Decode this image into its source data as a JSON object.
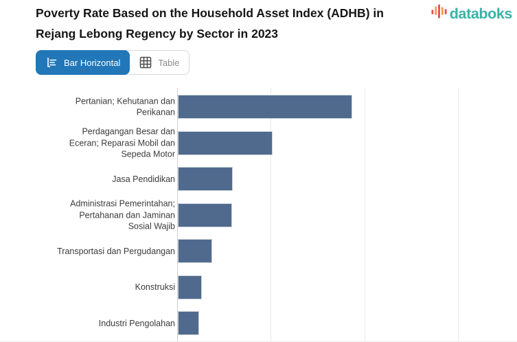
{
  "header": {
    "title": "Poverty Rate Based on the Household Asset Index (ADHB) in Rejang Lebong Regency by Sector in 2023",
    "brand": "databoks"
  },
  "view_toggle": {
    "bar_label": "Bar Horizontal",
    "table_label": "Table",
    "active": "Bar Horizontal"
  },
  "colors": {
    "bar": "#506a8d",
    "active_button_blue": "#2177b8",
    "brand_teal": "#38b2a7",
    "logo_red": "#e2554a",
    "logo_orange": "#f59a4d",
    "axis_line": "#cfcfcf",
    "gridline": "#e9e9e9"
  },
  "chart_data": {
    "type": "bar",
    "orientation": "horizontal",
    "title": "Poverty Rate Based on the Household Asset Index (ADHB) in Rejang Lebong Regency by Sector in 2023",
    "categories": [
      "Pertanian; Kehutanan dan Perikanan",
      "Perdagangan Besar dan Eceran; Reparasi Mobil dan Sepeda Motor",
      "Jasa Pendidikan",
      "Administrasi Pemerintahan; Pertahanan dan Jaminan Sosial Wajib",
      "Transportasi dan Pergudangan",
      "Konstruksi",
      "Industri Pengolahan"
    ],
    "values": [
      18.6,
      10.1,
      5.9,
      5.8,
      3.7,
      2.6,
      2.3
    ],
    "xlabel": "",
    "ylabel": "",
    "xlim": [
      0,
      36.3
    ],
    "gridlines_x": [
      10,
      20,
      30
    ],
    "grid": true,
    "legend": false,
    "value_axis_labels_visible": false
  }
}
